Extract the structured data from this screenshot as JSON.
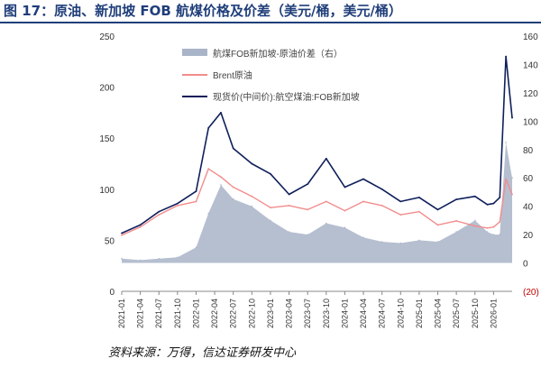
{
  "figure": {
    "title": "图 17：原油、新加坡 FOB 航煤价格及价差（美元/桶，美元/桶）",
    "source": "资料来源：万得，信达证券研发中心"
  },
  "chart_data": {
    "type": "area+line",
    "x_ticks": [
      "2021-01",
      "2021-04",
      "2021-07",
      "2021-10",
      "2022-01",
      "2022-04",
      "2022-07",
      "2022-10",
      "2023-01",
      "2023-04",
      "2023-07",
      "2023-10",
      "2024-01",
      "2024-04",
      "2024-07",
      "2024-10",
      "2025-01",
      "2025-04",
      "2025-07",
      "2025-10",
      "2026-01"
    ],
    "y_left": {
      "ylim": [
        0,
        250
      ],
      "ticks": [
        "0",
        "50",
        "100",
        "150",
        "200",
        "250"
      ]
    },
    "y_right": {
      "ylim": [
        -20,
        160
      ],
      "ticks": [
        "(20)",
        "0",
        "20",
        "40",
        "60",
        "80",
        "100",
        "120",
        "140",
        "160"
      ]
    },
    "legend_position": "top-left",
    "series": [
      {
        "name": "航煤FOB新加坡-原油价差（右）",
        "kind": "area",
        "axis": "right",
        "color": "#a9b4c8",
        "x": [
          "2021-01",
          "2021-04",
          "2021-07",
          "2021-10",
          "2022-01",
          "2022-03",
          "2022-05",
          "2022-07",
          "2022-10",
          "2023-01",
          "2023-04",
          "2023-07",
          "2023-10",
          "2024-01",
          "2024-04",
          "2024-07",
          "2024-10",
          "2025-01",
          "2025-04",
          "2025-07",
          "2025-10",
          "2025-12",
          "2026-01",
          "2026-02",
          "2026-03",
          "2026-04"
        ],
        "values": [
          3,
          2,
          3,
          4,
          11,
          35,
          55,
          45,
          40,
          30,
          22,
          20,
          28,
          25,
          18,
          15,
          14,
          16,
          15,
          22,
          30,
          22,
          20,
          20,
          85,
          60
        ]
      },
      {
        "name": "Brent原油",
        "kind": "line",
        "axis": "left",
        "color": "#f28c8c",
        "x": [
          "2021-01",
          "2021-04",
          "2021-07",
          "2021-10",
          "2022-01",
          "2022-03",
          "2022-05",
          "2022-07",
          "2022-10",
          "2023-01",
          "2023-04",
          "2023-07",
          "2023-10",
          "2024-01",
          "2024-04",
          "2024-07",
          "2024-10",
          "2025-01",
          "2025-04",
          "2025-07",
          "2025-10",
          "2025-12",
          "2026-01",
          "2026-02",
          "2026-03",
          "2026-04"
        ],
        "values": [
          55,
          63,
          75,
          84,
          88,
          120,
          112,
          102,
          93,
          82,
          84,
          80,
          88,
          79,
          88,
          84,
          75,
          78,
          65,
          69,
          64,
          62,
          63,
          68,
          110,
          95
        ]
      },
      {
        "name": "现货价(中间价):航空煤油:FOB新加坡",
        "kind": "line",
        "axis": "left",
        "color": "#0f1f5a",
        "x": [
          "2021-01",
          "2021-04",
          "2021-07",
          "2021-10",
          "2022-01",
          "2022-03",
          "2022-05",
          "2022-07",
          "2022-10",
          "2023-01",
          "2023-04",
          "2023-07",
          "2023-10",
          "2024-01",
          "2024-04",
          "2024-07",
          "2024-10",
          "2025-01",
          "2025-04",
          "2025-07",
          "2025-10",
          "2025-12",
          "2026-01",
          "2026-02",
          "2026-03",
          "2026-04"
        ],
        "values": [
          57,
          65,
          78,
          86,
          98,
          160,
          175,
          140,
          125,
          115,
          95,
          105,
          130,
          102,
          110,
          100,
          88,
          92,
          80,
          90,
          93,
          85,
          86,
          92,
          230,
          170
        ]
      }
    ]
  }
}
